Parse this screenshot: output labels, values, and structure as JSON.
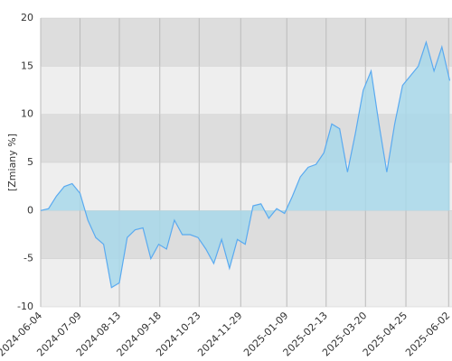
{
  "chart_data": {
    "type": "area",
    "y_label": "[Zmiany %]",
    "x": [
      "2024-06-04",
      "2024-06-11",
      "2024-06-18",
      "2024-06-25",
      "2024-07-02",
      "2024-07-09",
      "2024-07-16",
      "2024-07-23",
      "2024-07-30",
      "2024-08-06",
      "2024-08-13",
      "2024-08-20",
      "2024-08-27",
      "2024-09-03",
      "2024-09-10",
      "2024-09-17",
      "2024-09-24",
      "2024-10-01",
      "2024-10-08",
      "2024-10-15",
      "2024-10-22",
      "2024-10-29",
      "2024-11-05",
      "2024-11-12",
      "2024-11-19",
      "2024-11-26",
      "2024-12-03",
      "2024-12-10",
      "2024-12-17",
      "2024-12-24",
      "2024-12-31",
      "2025-01-07",
      "2025-01-14",
      "2025-01-21",
      "2025-01-28",
      "2025-02-04",
      "2025-02-11",
      "2025-02-18",
      "2025-02-25",
      "2025-03-04",
      "2025-03-11",
      "2025-03-18",
      "2025-03-25",
      "2025-04-01",
      "2025-04-08",
      "2025-04-15",
      "2025-04-22",
      "2025-04-29",
      "2025-05-06",
      "2025-05-13",
      "2025-05-20",
      "2025-05-27",
      "2025-06-03"
    ],
    "series": [
      {
        "color": "#5aaaf0",
        "values": [
          0,
          0.2,
          1.5,
          2.5,
          2.8,
          1.8,
          -1,
          -2.8,
          -3.5,
          -8,
          -7.5,
          -2.8,
          -2,
          -1.8,
          -5,
          -3.5,
          -4,
          -1,
          -2.5,
          -2.5,
          -2.8,
          -4,
          -5.5,
          -3,
          -6,
          -3,
          -3.5,
          0.5,
          0.7,
          -0.8,
          0.2,
          -0.3,
          1.5,
          3.5,
          4.5,
          4.8,
          6,
          9,
          8.5,
          4,
          8,
          12.5,
          14.5,
          9,
          4,
          9,
          13,
          14,
          15,
          17.5,
          14.5,
          17,
          13.5
        ]
      }
    ],
    "xlim": [
      "2024-06-04",
      "2025-06-05"
    ],
    "xticks": [
      "2024-06-04",
      "2024-07-09",
      "2024-08-13",
      "2024-09-18",
      "2024-10-23",
      "2024-11-29",
      "2025-01-09",
      "2025-02-13",
      "2025-03-20",
      "2025-04-25",
      "2025-06-02"
    ],
    "ylim": [
      -10,
      20
    ],
    "yticks": [
      -10,
      -5,
      0,
      5,
      10,
      15,
      20
    ],
    "band_colors": [
      "#eeeeee",
      "#dddddd"
    ],
    "fill": "#a8d8ea"
  }
}
